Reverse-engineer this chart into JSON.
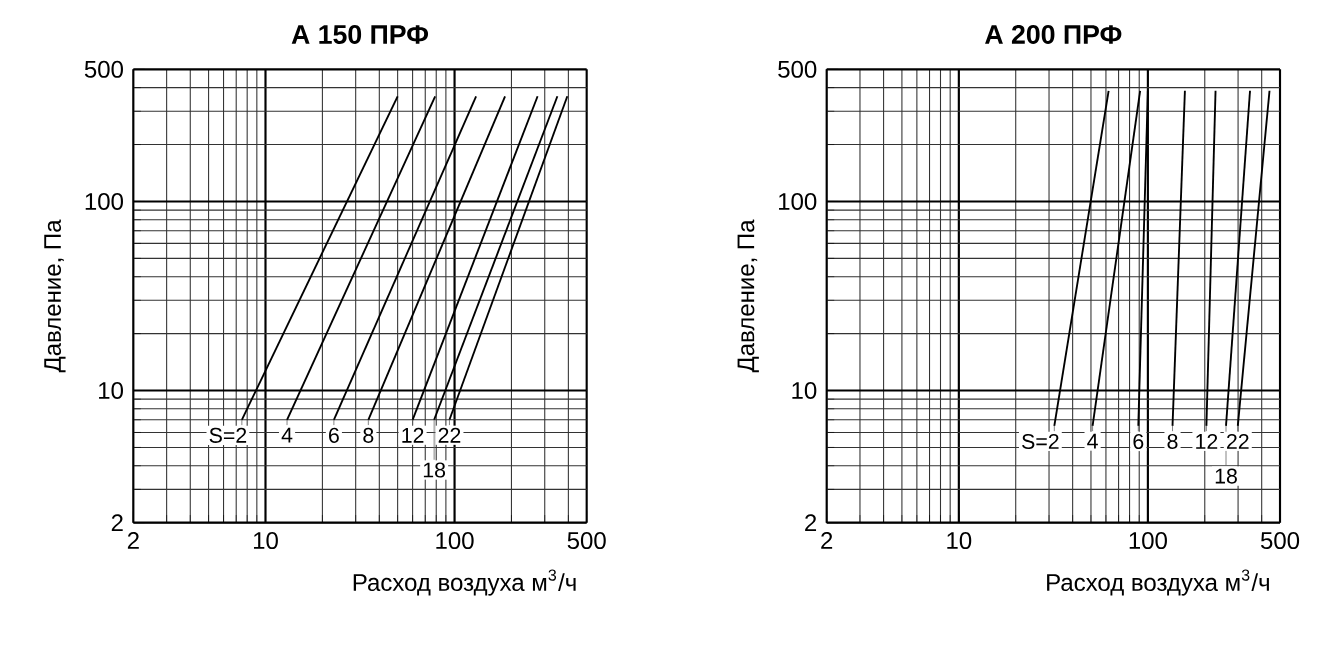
{
  "chart_data": [
    {
      "type": "line",
      "title": "A 150 ПРФ",
      "xlabel": "Расход воздуха м$^{3}$/ч",
      "ylabel": "Давление, Па",
      "log": "xy",
      "grid": true,
      "marker": "none",
      "line_style": "solid",
      "xlim": [
        2,
        500
      ],
      "ylim": [
        2,
        500
      ],
      "xticks": [
        2,
        10,
        100,
        500
      ],
      "yticks": [
        2,
        10,
        100,
        500
      ],
      "series": [
        {
          "name": "S=2",
          "color": "#000000",
          "x": [
            7.5,
            50
          ],
          "values": [
            7,
            360
          ]
        },
        {
          "name": "4",
          "color": "#000000",
          "x": [
            13,
            79
          ],
          "values": [
            7,
            360
          ]
        },
        {
          "name": "6",
          "color": "#000000",
          "x": [
            23,
            130
          ],
          "values": [
            7,
            360
          ]
        },
        {
          "name": "8",
          "color": "#000000",
          "x": [
            35,
            185
          ],
          "values": [
            7,
            360
          ]
        },
        {
          "name": "12",
          "color": "#000000",
          "x": [
            60,
            275
          ],
          "values": [
            7,
            360
          ]
        },
        {
          "name": "18",
          "color": "#000000",
          "x": [
            78,
            350
          ],
          "values": [
            7,
            360
          ]
        },
        {
          "name": "22",
          "color": "#000000",
          "x": [
            94,
            395
          ],
          "values": [
            7,
            360
          ]
        }
      ]
    },
    {
      "type": "line",
      "title": "A 200 ПРФ",
      "xlabel": "Расход воздуха м$^{3}$/ч",
      "ylabel": "Давление, Па",
      "log": "xy",
      "grid": true,
      "marker": "none",
      "line_style": "solid",
      "xlim": [
        2,
        500
      ],
      "ylim": [
        2,
        500
      ],
      "xticks": [
        2,
        10,
        100,
        500
      ],
      "yticks": [
        2,
        10,
        100,
        500
      ],
      "series": [
        {
          "name": "S=2",
          "color": "#000000",
          "x": [
            32,
            62
          ],
          "values": [
            6.5,
            385
          ]
        },
        {
          "name": "4",
          "color": "#000000",
          "x": [
            51,
            91
          ],
          "values": [
            6.5,
            385
          ]
        },
        {
          "name": "6",
          "color": "#000000",
          "x": [
            89,
            100
          ],
          "values": [
            6.5,
            385
          ]
        },
        {
          "name": "8",
          "color": "#000000",
          "x": [
            135,
            157
          ],
          "values": [
            6.5,
            385
          ]
        },
        {
          "name": "12",
          "color": "#000000",
          "x": [
            204,
            228
          ],
          "values": [
            6.5,
            385
          ]
        },
        {
          "name": "18",
          "color": "#000000",
          "x": [
            259,
            347
          ],
          "values": [
            6.5,
            385
          ]
        },
        {
          "name": "22",
          "color": "#000000",
          "x": [
            299,
            440
          ],
          "values": [
            6.5,
            385
          ]
        }
      ]
    }
  ]
}
